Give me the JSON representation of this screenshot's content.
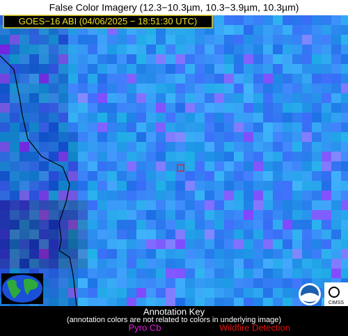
{
  "header": {
    "title": "False Color Imagery (12.3−10.3µm, 10.3−3.9µm, 10.3µm)",
    "subtitle": "GOES−16 ABI (04/06/2025 − 18:51:30 UTC)"
  },
  "logos": {
    "cimss": "CIMSS"
  },
  "key": {
    "title": "Annotation Key",
    "note": "(annotation colors are not related to colors in underlying image)",
    "items": [
      "Pyro Cb",
      "Wildfire Detection"
    ]
  }
}
